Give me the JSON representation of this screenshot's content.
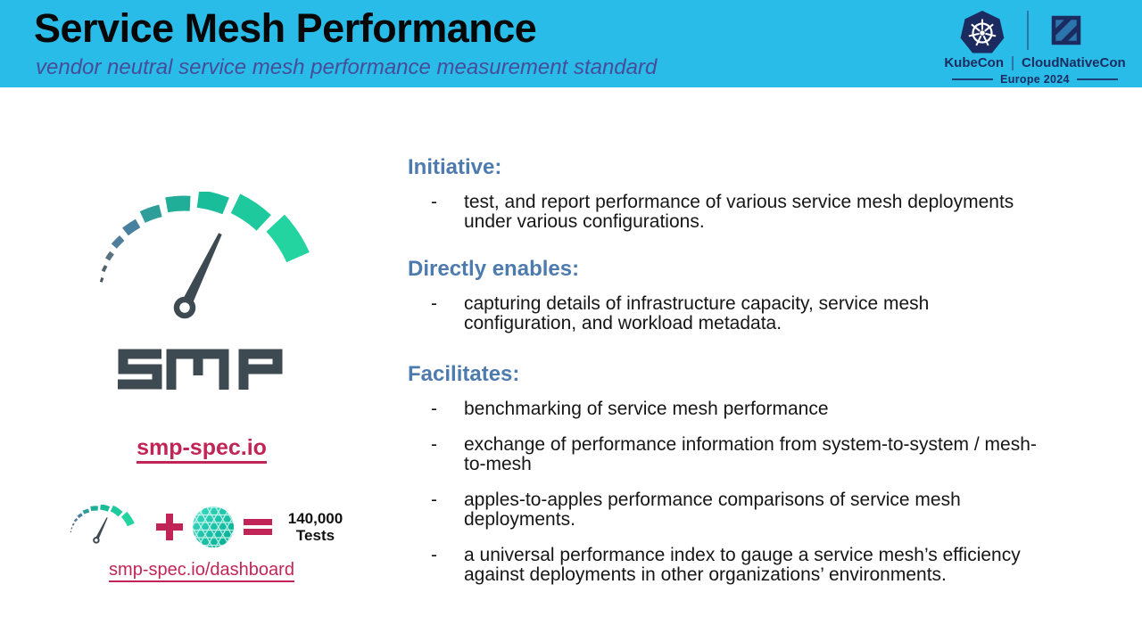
{
  "slide": {
    "title": "Service Mesh Performance",
    "subtitle": "vendor neutral service mesh performance measurement standard"
  },
  "conference": {
    "kubecon": "KubeCon",
    "cloudnativecon": "CloudNativeCon",
    "event": "Europe 2024"
  },
  "smp": {
    "wordmark": "SMP",
    "site_link": "smp-spec.io",
    "dashboard_link": "smp-spec.io/dashboard",
    "formula": {
      "plus": "+",
      "equals": "=",
      "value": "140,000",
      "unit": "Tests"
    }
  },
  "ui": {
    "bullet_marker": "-"
  },
  "sections": [
    {
      "heading": "Initiative:",
      "bullets": [
        "test, and report performance of various service mesh deployments under various configurations."
      ]
    },
    {
      "heading": "Directly enables:",
      "bullets": [
        "capturing details of infrastructure capacity, service mesh configuration, and workload metadata."
      ]
    },
    {
      "heading": "Facilitates:",
      "bullets": [
        "benchmarking of service mesh performance",
        "exchange of performance information from system-to-system / mesh-to-mesh",
        "apples-to-apples performance comparisons of service mesh deployments.",
        "a universal performance index to gauge a service mesh’s efficiency against deployments in other organizations’ environments."
      ]
    }
  ],
  "icons": {
    "kubecon_logo": "kubernetes-helm-heptagon",
    "cloudnativecon_logo": "cncf-diagonal-square",
    "smp_logo": "speedometer-gauge",
    "meshery_logo": "triangulated-sphere"
  },
  "colors": {
    "header_bg": "#2ABCE9",
    "subtitle_text": "#474C99",
    "navy": "#1B2B5F",
    "heading_blue": "#4E7BAE",
    "link_crimson": "#C12557",
    "slate": "#3E4A52",
    "meshery_teal": "#00C0A9",
    "gauge_segments": [
      "#49545B",
      "#53616A",
      "#5A7382",
      "#4F7E9B",
      "#48819F",
      "#2E9E9A",
      "#21AE99",
      "#1ABD9A",
      "#1ECA9D",
      "#23D4A0"
    ]
  }
}
